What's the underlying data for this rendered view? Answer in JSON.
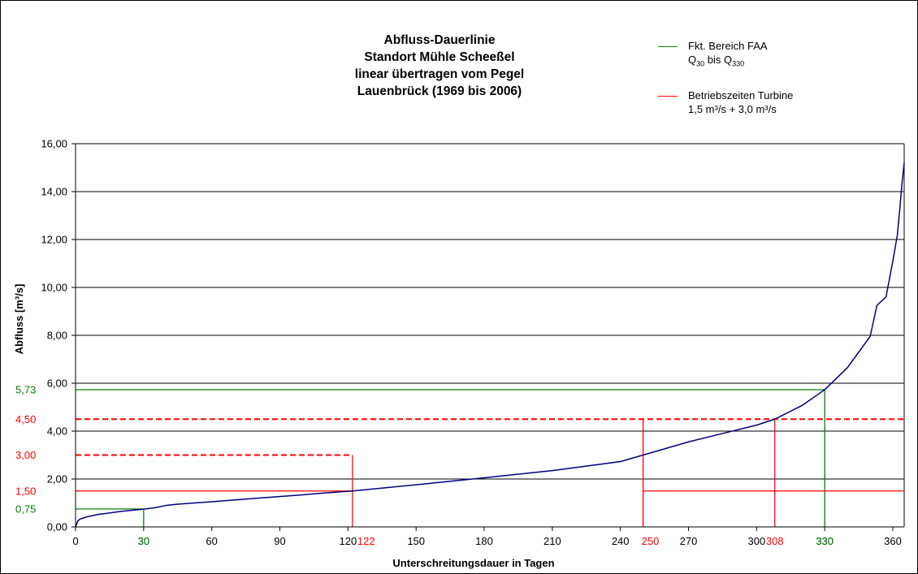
{
  "chart_data": {
    "type": "line",
    "title_lines": [
      "Abfluss-Dauerlinie",
      "Standort Mühle Scheeßel",
      "linear übertragen vom Pegel",
      "Lauenbrück (1969 bis 2006)"
    ],
    "xlabel": "Unterschreitungsdauer in Tagen",
    "ylabel": "Abfluss [m³/s]",
    "xlim": [
      0,
      365
    ],
    "ylim": [
      0,
      16
    ],
    "x_ticks": [
      "0",
      "30",
      "60",
      "90",
      "120",
      "150",
      "180",
      "210",
      "240",
      "270",
      "300",
      "330",
      "360"
    ],
    "y_ticks": [
      "0,00",
      "2,00",
      "4,00",
      "6,00",
      "8,00",
      "10,00",
      "12,00",
      "14,00",
      "16,00"
    ],
    "grid": "horizontal",
    "legend": {
      "placement": "top-right",
      "entries": [
        {
          "line1": "Fkt. Bereich FAA",
          "line2_parts": [
            "Q",
            "30",
            " bis Q",
            "330"
          ],
          "color": "#008000"
        },
        {
          "line1": "Betriebszeiten Turbine",
          "line2": "1,5 m³/s + 3,0 m³/s",
          "color": "#ff0000"
        }
      ]
    },
    "series": [
      {
        "color": "#000080",
        "points": [
          [
            0,
            0.0
          ],
          [
            1,
            0.25
          ],
          [
            2,
            0.33
          ],
          [
            5,
            0.42
          ],
          [
            10,
            0.52
          ],
          [
            20,
            0.65
          ],
          [
            30,
            0.74
          ],
          [
            35,
            0.8
          ],
          [
            40,
            0.9
          ],
          [
            45,
            0.95
          ],
          [
            60,
            1.05
          ],
          [
            80,
            1.2
          ],
          [
            100,
            1.34
          ],
          [
            110,
            1.42
          ],
          [
            122,
            1.5
          ],
          [
            150,
            1.76
          ],
          [
            180,
            2.05
          ],
          [
            210,
            2.35
          ],
          [
            230,
            2.6
          ],
          [
            240,
            2.73
          ],
          [
            250,
            3.0
          ],
          [
            270,
            3.55
          ],
          [
            285,
            3.9
          ],
          [
            300,
            4.25
          ],
          [
            308,
            4.5
          ],
          [
            320,
            5.07
          ],
          [
            330,
            5.73
          ],
          [
            340,
            6.65
          ],
          [
            350,
            7.95
          ],
          [
            353,
            9.25
          ],
          [
            357,
            9.6
          ],
          [
            360,
            11.1
          ],
          [
            362,
            12.2
          ],
          [
            363,
            13.2
          ],
          [
            364,
            14.3
          ],
          [
            365,
            15.2
          ]
        ]
      }
    ],
    "reference_lines": [
      {
        "kind": "horizontal",
        "y": 5.73,
        "x_from": 0,
        "x_to": 330,
        "color": "#008000",
        "style": "solid"
      },
      {
        "kind": "vertical",
        "x": 330,
        "y_from": 0,
        "y_to": 5.73,
        "color": "#008000",
        "style": "solid"
      },
      {
        "kind": "horizontal",
        "y": 0.75,
        "x_from": 0,
        "x_to": 30,
        "color": "#008000",
        "style": "solid"
      },
      {
        "kind": "vertical",
        "x": 30,
        "y_from": 0,
        "y_to": 0.75,
        "color": "#008000",
        "style": "solid"
      },
      {
        "kind": "horizontal",
        "y": 4.5,
        "x_from": 0,
        "x_to": 365,
        "color": "#ff0000",
        "style": "dashed"
      },
      {
        "kind": "horizontal",
        "y": 3.0,
        "x_from": 0,
        "x_to": 122,
        "color": "#ff0000",
        "style": "dashed"
      },
      {
        "kind": "vertical",
        "x": 122,
        "y_from": 0,
        "y_to": 3.0,
        "color": "#ff0000",
        "style": "solid"
      },
      {
        "kind": "horizontal",
        "y": 1.5,
        "x_from": 0,
        "x_to": 122,
        "color": "#ff0000",
        "style": "solid"
      },
      {
        "kind": "vertical",
        "x": 250,
        "y_from": 0,
        "y_to": 4.5,
        "color": "#ff0000",
        "style": "solid"
      },
      {
        "kind": "horizontal",
        "y": 1.5,
        "x_from": 250,
        "x_to": 365,
        "color": "#ff0000",
        "style": "solid"
      },
      {
        "kind": "vertical",
        "x": 308,
        "y_from": 0,
        "y_to": 4.5,
        "color": "#ff0000",
        "style": "solid"
      }
    ],
    "y_annotations": [
      {
        "value": 5.73,
        "label": "5,73",
        "color": "#008000"
      },
      {
        "value": 4.5,
        "label": "4,50",
        "color": "#ff0000"
      },
      {
        "value": 3.0,
        "label": "3,00",
        "color": "#ff0000"
      },
      {
        "value": 1.5,
        "label": "1,50",
        "color": "#ff0000"
      },
      {
        "value": 0.75,
        "label": "0,75",
        "color": "#008000"
      }
    ],
    "x_annotations": [
      {
        "value": 30,
        "label": "30",
        "color": "#008000"
      },
      {
        "value": 122,
        "label": "122",
        "color": "#ff0000"
      },
      {
        "value": 250,
        "label": "250",
        "color": "#ff0000"
      },
      {
        "value": 308,
        "label": "308",
        "color": "#ff0000"
      },
      {
        "value": 330,
        "label": "330",
        "color": "#008000"
      }
    ]
  }
}
